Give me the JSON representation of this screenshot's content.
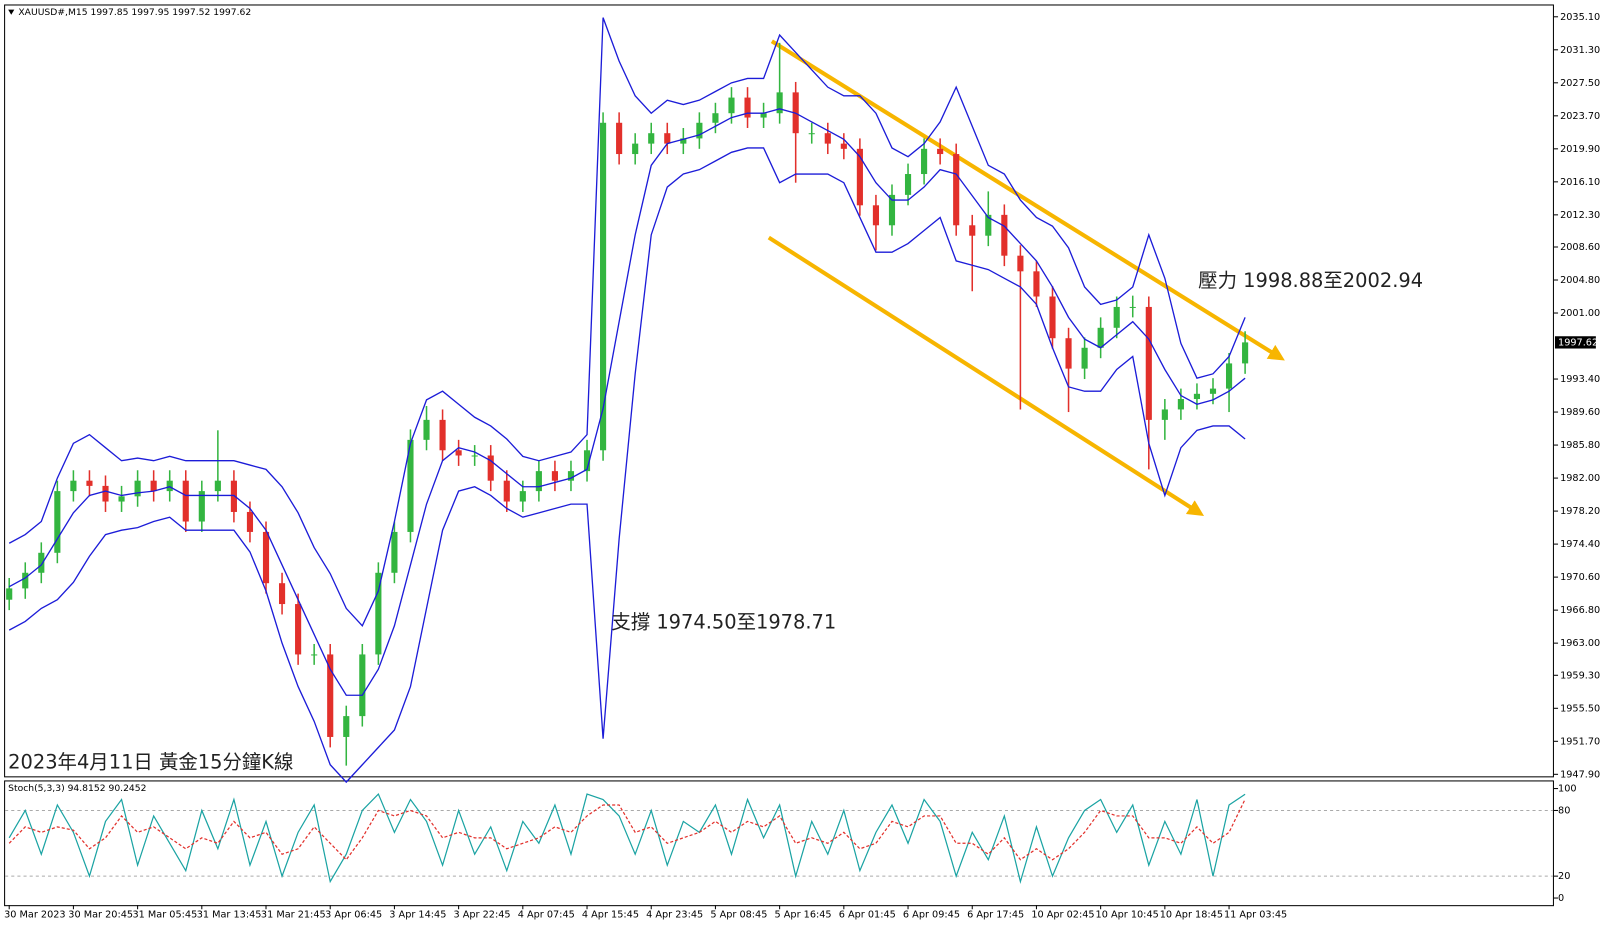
{
  "chart_data": [
    {
      "type": "candlestick",
      "title": "XAUUSD#,M15 1997.85 1997.95 1997.52 1997.62",
      "annotations": [
        "壓力 1998.88至2002.94",
        "支撐 1974.50至1978.71",
        "2023年4月11日 黃金15分鐘K線"
      ],
      "categories": [
        "30 Mar 2023",
        null,
        null,
        null,
        "30 Mar 20:45",
        null,
        null,
        null,
        "31 Mar 05:45",
        null,
        null,
        null,
        "31 Mar 13:45",
        null,
        null,
        null,
        "31 Mar 21:45",
        null,
        null,
        null,
        "3 Apr 06:45",
        null,
        null,
        null,
        "3 Apr 14:45",
        null,
        null,
        null,
        "3 Apr 22:45",
        null,
        null,
        null,
        "4 Apr 07:45",
        null,
        null,
        null,
        "4 Apr 15:45",
        null,
        null,
        null,
        "4 Apr 23:45",
        null,
        null,
        null,
        "5 Apr 08:45",
        null,
        null,
        null,
        "5 Apr 16:45",
        null,
        null,
        null,
        "6 Apr 01:45",
        null,
        null,
        null,
        "6 Apr 09:45",
        null,
        null,
        null,
        "6 Apr 17:45",
        null,
        null,
        null,
        "10 Apr 02:45",
        null,
        null,
        null,
        "10 Apr 10:45",
        null,
        null,
        null,
        "10 Apr 18:45",
        null,
        null,
        null,
        "11 Apr 03:45",
        null
      ],
      "open": [
        1968.0,
        1969.3,
        1971.1,
        1973.4,
        1980.5,
        1981.7,
        1981.1,
        1979.3,
        1979.9,
        1981.7,
        1980.5,
        1981.7,
        1977.0,
        1980.5,
        1981.7,
        1978.1,
        1975.8,
        1969.9,
        1967.5,
        1961.7,
        1961.7,
        1952.2,
        1954.6,
        1961.7,
        1971.1,
        1975.8,
        1986.4,
        1988.7,
        1985.2,
        1984.6,
        1984.6,
        1981.7,
        1979.3,
        1980.5,
        1982.8,
        1981.7,
        1982.8,
        1985.2,
        2022.9,
        2019.3,
        2020.5,
        2021.7,
        2020.5,
        2021.1,
        2022.9,
        2024.0,
        2025.8,
        2023.5,
        2024.0,
        2026.4,
        2021.7,
        2021.7,
        2020.5,
        2019.9,
        2013.4,
        2011.1,
        2014.6,
        2017.0,
        2019.9,
        2019.3,
        2011.1,
        2009.9,
        2012.3,
        2007.6,
        2005.8,
        2002.9,
        1998.1,
        1994.6,
        1997.0,
        1999.3,
        2001.7,
        2001.7,
        1988.7,
        1989.9,
        1991.1,
        1991.7,
        1992.3,
        1995.2
      ],
      "high": [
        1970.5,
        1972.3,
        1974.6,
        1981.7,
        1982.9,
        1982.9,
        1982.3,
        1981.1,
        1982.9,
        1982.9,
        1982.9,
        1982.9,
        1981.7,
        1987.5,
        1982.9,
        1979.3,
        1977.0,
        1971.1,
        1968.7,
        1962.9,
        1962.9,
        1955.8,
        1962.9,
        1972.3,
        1977.0,
        1987.6,
        1990.3,
        1989.9,
        1986.4,
        1985.8,
        1985.8,
        1982.9,
        1981.7,
        1984.0,
        1984.0,
        1984.0,
        1986.4,
        2024.1,
        2024.1,
        2021.7,
        2022.9,
        2022.9,
        2022.3,
        2024.1,
        2025.2,
        2027.0,
        2027.0,
        2025.2,
        2032.1,
        2027.6,
        2022.9,
        2022.9,
        2021.7,
        2021.1,
        2014.6,
        2015.8,
        2018.2,
        2021.1,
        2021.1,
        2020.5,
        2012.3,
        2015.0,
        2013.5,
        2008.8,
        2007.0,
        2004.1,
        1999.3,
        1998.2,
        2000.5,
        2002.9,
        2003.0,
        2002.9,
        1991.1,
        1992.3,
        1992.9,
        1993.5,
        1996.4,
        1998.9
      ],
      "low": [
        1966.8,
        1968.1,
        1969.9,
        1972.2,
        1979.3,
        1979.9,
        1978.1,
        1978.1,
        1978.7,
        1979.3,
        1979.3,
        1975.8,
        1975.8,
        1979.3,
        1976.9,
        1974.6,
        1968.7,
        1966.3,
        1960.5,
        1960.5,
        1951.0,
        1948.9,
        1953.4,
        1960.5,
        1969.9,
        1974.6,
        1985.2,
        1984.0,
        1983.4,
        1983.4,
        1980.5,
        1978.1,
        1978.1,
        1979.3,
        1980.5,
        1980.5,
        1981.6,
        1984.0,
        2018.1,
        2018.1,
        2019.3,
        2019.3,
        2019.3,
        2019.9,
        2021.7,
        2022.8,
        2022.3,
        2022.3,
        2022.8,
        2016.0,
        2020.5,
        2019.3,
        2018.7,
        2012.2,
        2008.2,
        2009.9,
        2013.4,
        2015.8,
        2018.1,
        2009.9,
        2003.5,
        2008.7,
        2006.4,
        1989.9,
        2001.7,
        1996.9,
        1989.6,
        1993.4,
        1995.8,
        1998.1,
        2000.5,
        1983.0,
        1986.4,
        1988.7,
        1989.9,
        1990.5,
        1989.6,
        1994.0
      ],
      "close": [
        1969.3,
        1971.1,
        1973.4,
        1980.5,
        1981.7,
        1981.1,
        1979.3,
        1979.9,
        1981.7,
        1980.5,
        1981.7,
        1977.0,
        1980.5,
        1981.7,
        1978.1,
        1975.8,
        1969.9,
        1967.5,
        1961.7,
        1961.7,
        1952.2,
        1954.6,
        1961.7,
        1971.1,
        1975.8,
        1986.4,
        1988.7,
        1985.2,
        1984.6,
        1984.6,
        1981.7,
        1979.3,
        1980.5,
        1982.8,
        1981.7,
        1982.8,
        1985.2,
        2022.9,
        2019.3,
        2020.5,
        2021.7,
        2020.5,
        2021.1,
        2022.9,
        2024.0,
        2025.8,
        2023.5,
        2024.0,
        2026.4,
        2021.7,
        2021.7,
        2020.5,
        2019.9,
        2013.4,
        2011.1,
        2014.6,
        2017.0,
        2019.9,
        2019.3,
        2011.1,
        2009.9,
        2012.3,
        2007.6,
        2005.8,
        2002.9,
        1998.1,
        1994.6,
        1997.0,
        1999.3,
        2001.7,
        2001.7,
        1988.7,
        1989.9,
        1991.1,
        1991.7,
        1992.3,
        1995.2,
        1997.62
      ],
      "up_color": "#33b540",
      "down_color": "#e2302b",
      "bands": {
        "color": "#1c1cd8",
        "upper": [
          1974.5,
          1975.5,
          1977,
          1982,
          1986,
          1987,
          1985.5,
          1984,
          1984.3,
          1984,
          1984.5,
          1984,
          1984,
          1984,
          1984,
          1983.5,
          1983,
          1981,
          1978,
          1974,
          1971,
          1967,
          1965,
          1969,
          1977,
          1986,
          1991,
          1992,
          1990.5,
          1989,
          1988,
          1986.5,
          1984.5,
          1984,
          1984.5,
          1985,
          1987,
          2035,
          2030,
          2026,
          2024,
          2025.5,
          2025,
          2025.5,
          2026.5,
          2027.5,
          2028,
          2028,
          2033,
          2031,
          2029,
          2027,
          2026,
          2026,
          2024,
          2020,
          2019,
          2020.5,
          2023,
          2027,
          2022.5,
          2018,
          2017,
          2014,
          2012,
          2011,
          2008.5,
          2004,
          2002,
          2002.5,
          2004,
          2010,
          2005,
          1997.5,
          1993.5,
          1994,
          1996,
          2000.5
        ],
        "middle": [
          1969.5,
          1970.5,
          1972,
          1975,
          1978,
          1980,
          1980.5,
          1980,
          1980.3,
          1980.5,
          1981,
          1980,
          1980,
          1980,
          1980,
          1978.5,
          1976,
          1972,
          1968,
          1964,
          1960,
          1957,
          1957,
          1960,
          1965,
          1972,
          1979,
          1984,
          1985.5,
          1985,
          1984,
          1982.5,
          1981,
          1981,
          1981.5,
          1982,
          1983,
          1990,
          2000,
          2010,
          2018,
          2020.5,
          2021,
          2021.5,
          2022.5,
          2023.5,
          2024,
          2024,
          2024.5,
          2024,
          2023,
          2022,
          2021,
          2019,
          2016,
          2014,
          2014,
          2015.5,
          2017.5,
          2017,
          2014.5,
          2012,
          2011,
          2009,
          2007,
          2004,
          2000.5,
          1998,
          1997,
          1998.5,
          2000,
          1998,
          1994.5,
          1991.5,
          1990.5,
          1991,
          1992,
          1993.5
        ],
        "lower": [
          1964.5,
          1965.5,
          1967,
          1968,
          1970,
          1973,
          1975.5,
          1976,
          1976.3,
          1977,
          1977.5,
          1976,
          1976,
          1976,
          1976,
          1973.5,
          1969,
          1963,
          1958,
          1954,
          1949,
          1947,
          1949,
          1951,
          1953,
          1958,
          1967,
          1976,
          1980.5,
          1981,
          1980,
          1978.5,
          1977.5,
          1978,
          1978.5,
          1979,
          1979,
          1952,
          1975,
          1994,
          2010,
          2015.5,
          2017,
          2017.5,
          2018.5,
          2019.5,
          2020,
          2020,
          2016,
          2017,
          2017,
          2017,
          2016,
          2012,
          2008,
          2008,
          2009,
          2010.5,
          2012,
          2007,
          2006.5,
          2006,
          2005,
          2004,
          2002,
          1997,
          1992.5,
          1992,
          1992,
          1994.5,
          1996,
          1986,
          1980,
          1985.5,
          1987.5,
          1988,
          1988,
          1986.5
        ]
      },
      "channel_color": "#f7b500",
      "price": 1997.62,
      "ylim": [
        1947.55,
        2036.4
      ],
      "yticks": [
        {
          "value": 2035.1,
          "label": "2035.10"
        },
        {
          "value": 2031.3,
          "label": "2031.30"
        },
        {
          "value": 2027.5,
          "label": "2027.50"
        },
        {
          "value": 2023.7,
          "label": "2023.70"
        },
        {
          "value": 2019.9,
          "label": "2019.90"
        },
        {
          "value": 2016.1,
          "label": "2016.10"
        },
        {
          "value": 2012.3,
          "label": "2012.30"
        },
        {
          "value": 2008.6,
          "label": "2008.60"
        },
        {
          "value": 2004.8,
          "label": "2004.80"
        },
        {
          "value": 2001.0,
          "label": "2001.00"
        },
        {
          "value": 1993.4,
          "label": "1993.40"
        },
        {
          "value": 1989.6,
          "label": "1989.60"
        },
        {
          "value": 1985.8,
          "label": "1985.80"
        },
        {
          "value": 1982.0,
          "label": "1982.00"
        },
        {
          "value": 1978.2,
          "label": "1978.20"
        },
        {
          "value": 1974.4,
          "label": "1974.40"
        },
        {
          "value": 1970.6,
          "label": "1970.60"
        },
        {
          "value": 1966.8,
          "label": "1966.80"
        },
        {
          "value": 1963.0,
          "label": "1963.00"
        },
        {
          "value": 1959.3,
          "label": "1959.30"
        },
        {
          "value": 1955.5,
          "label": "1955.50"
        },
        {
          "value": 1951.7,
          "label": "1951.70"
        },
        {
          "value": 1947.9,
          "label": "1947.90"
        }
      ]
    },
    {
      "type": "line",
      "title": "Stoch(5,3,3) 94.8152 90.2452",
      "series": [
        {
          "color": "#1aa3a3",
          "dashed": false,
          "values": [
            55,
            80,
            40,
            85,
            60,
            20,
            70,
            90,
            30,
            75,
            50,
            25,
            80,
            45,
            90,
            30,
            70,
            20,
            60,
            85,
            15,
            40,
            80,
            95,
            60,
            90,
            70,
            30,
            80,
            40,
            65,
            25,
            70,
            50,
            85,
            40,
            95,
            90,
            75,
            40,
            80,
            30,
            70,
            60,
            85,
            40,
            90,
            55,
            85,
            20,
            70,
            40,
            80,
            25,
            60,
            85,
            50,
            90,
            70,
            20,
            60,
            35,
            75,
            15,
            65,
            20,
            55,
            80,
            90,
            60,
            85,
            30,
            70,
            40,
            90,
            20,
            85,
            94.8152
          ]
        },
        {
          "color": "#e2302b",
          "dashed": true,
          "values": [
            50,
            65,
            60,
            65,
            62,
            45,
            55,
            75,
            60,
            65,
            55,
            45,
            55,
            50,
            70,
            55,
            60,
            40,
            45,
            65,
            50,
            35,
            55,
            80,
            75,
            80,
            75,
            55,
            60,
            55,
            55,
            45,
            50,
            55,
            65,
            60,
            75,
            85,
            85,
            60,
            65,
            50,
            55,
            60,
            70,
            60,
            70,
            65,
            75,
            50,
            55,
            50,
            60,
            45,
            50,
            70,
            65,
            75,
            75,
            50,
            50,
            40,
            55,
            35,
            45,
            35,
            45,
            60,
            80,
            75,
            75,
            55,
            55,
            50,
            65,
            50,
            60,
            90.2452
          ]
        }
      ],
      "ylim": [
        -6.5,
        106.5
      ],
      "yticks": [
        0,
        20,
        80,
        100
      ],
      "levels": [
        20,
        80
      ]
    }
  ]
}
